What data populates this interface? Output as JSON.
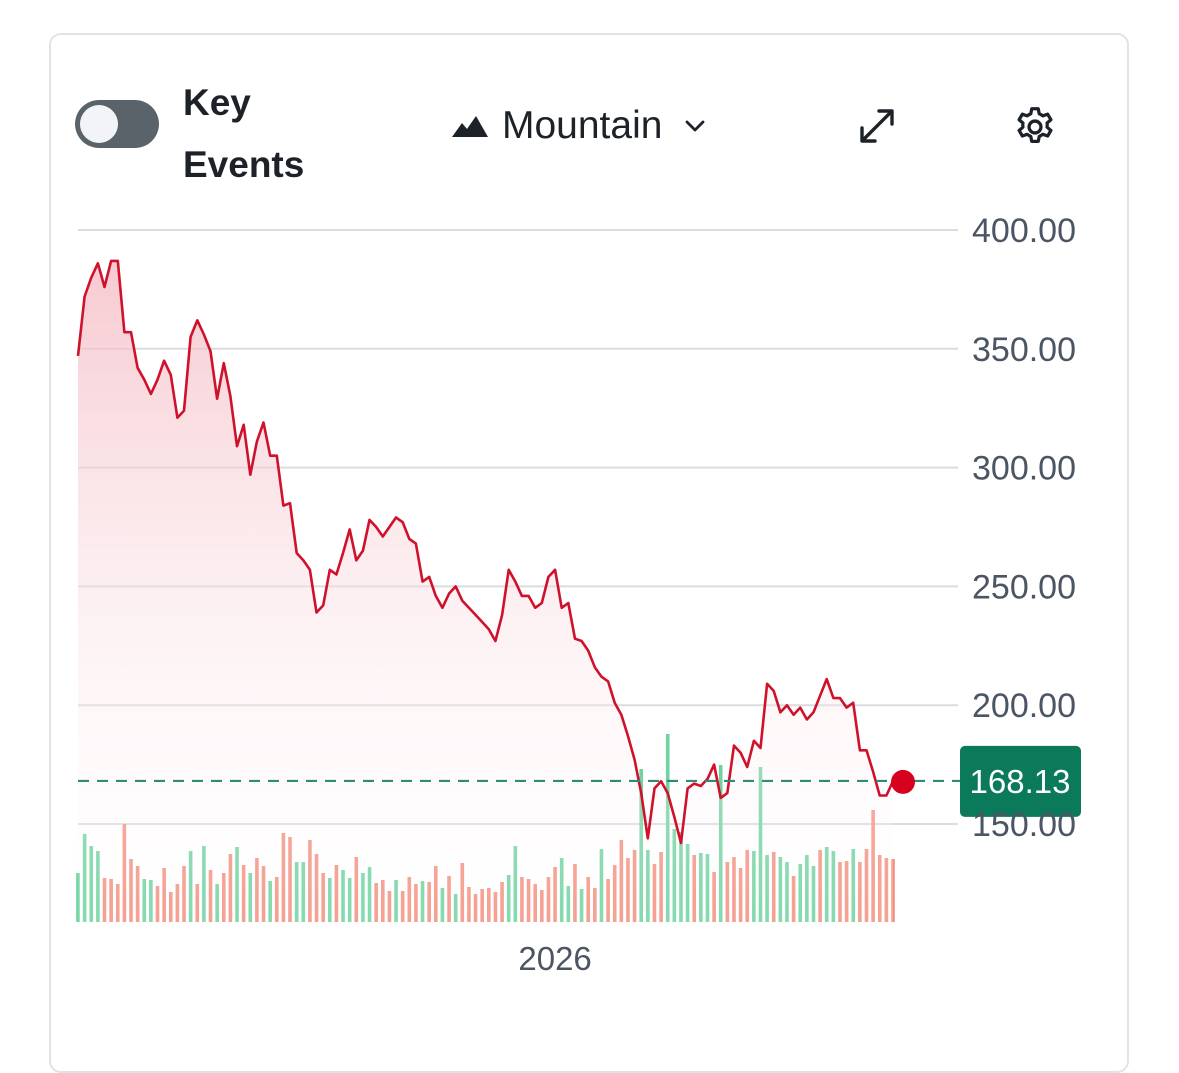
{
  "header": {
    "key_events_label": "Key Events",
    "chart_type_label": "Mountain"
  },
  "icons": {
    "mountain": "mountain-icon",
    "chevron": "chevron-down-icon",
    "expand": "expand-icon",
    "settings": "gear-icon"
  },
  "colors": {
    "line": "#d0112b",
    "fill": "#f5c6cd",
    "up_volume": "#6fd3a0",
    "down_volume": "#f3907f",
    "current_price_bg": "#0a7a5a",
    "reference_line": "#2e8b78",
    "marker": "#d7001e"
  },
  "chart_data": {
    "type": "area",
    "title": "",
    "xlabel": "",
    "ylabel": "",
    "ylim": [
      113,
      408
    ],
    "y_ticks": [
      "400.00",
      "350.00",
      "300.00",
      "250.00",
      "200.00",
      "150.00"
    ],
    "y_tick_values": [
      400,
      350,
      300,
      250,
      200,
      150
    ],
    "x_tick_labels": [
      "2026"
    ],
    "x_tick_index": 72,
    "current_price": 168.13,
    "current_price_label": "168.13",
    "values": [
      347,
      372,
      380,
      386,
      376,
      387,
      387,
      357,
      357,
      342,
      337,
      331,
      337,
      345,
      339,
      321,
      324,
      355,
      362,
      356,
      349,
      329,
      344,
      330,
      309,
      318,
      297,
      311,
      319,
      305,
      305,
      284,
      285,
      264,
      261,
      257,
      239,
      242,
      257,
      255,
      264,
      274,
      261,
      265,
      278,
      275,
      271,
      275,
      279,
      277,
      270,
      268,
      252,
      254,
      246,
      241,
      247,
      250,
      244,
      241,
      238,
      235,
      232,
      227,
      238,
      257,
      252,
      246,
      246,
      241,
      243,
      254,
      257,
      241,
      243,
      228,
      227,
      223,
      216,
      212,
      210,
      201,
      196,
      187,
      177,
      163,
      144,
      165,
      168,
      163,
      153,
      142,
      165,
      167,
      166,
      169,
      175,
      161,
      163,
      183,
      180,
      174,
      185,
      182,
      209,
      206,
      197,
      200,
      196,
      199,
      194,
      197,
      204,
      211,
      203,
      203,
      199,
      201,
      181,
      181,
      172,
      162,
      162,
      168
    ],
    "volume_heights": [
      49,
      88,
      76,
      71,
      44,
      43,
      38,
      98,
      63,
      56,
      43,
      42,
      36,
      54,
      30,
      38,
      56,
      71,
      38,
      76,
      52,
      38,
      49,
      68,
      75,
      57,
      49,
      64,
      56,
      41,
      45,
      89,
      85,
      60,
      60,
      82,
      68,
      49,
      44,
      57,
      52,
      44,
      65,
      49,
      55,
      39,
      42,
      31,
      42,
      31,
      45,
      38,
      41,
      40,
      56,
      34,
      46,
      28,
      59,
      35,
      28,
      33,
      34,
      30,
      40,
      47,
      76,
      45,
      43,
      38,
      32,
      45,
      55,
      64,
      36,
      58,
      33,
      45,
      34,
      73,
      43,
      57,
      82,
      64,
      72,
      153,
      72,
      58,
      70,
      188,
      93,
      90,
      78,
      67,
      69,
      68,
      50,
      157,
      60,
      65,
      54,
      72,
      71,
      155,
      67,
      70,
      65,
      60,
      46,
      58,
      67,
      56,
      72,
      75,
      71,
      60,
      61,
      73,
      60,
      73,
      112,
      67,
      64,
      63
    ],
    "volume_up": [
      1,
      1,
      1,
      1,
      0,
      0,
      0,
      0,
      0,
      0,
      1,
      1,
      0,
      0,
      0,
      0,
      0,
      1,
      0,
      1,
      0,
      1,
      0,
      0,
      1,
      0,
      1,
      0,
      0,
      1,
      0,
      0,
      0,
      1,
      1,
      0,
      0,
      0,
      1,
      0,
      1,
      1,
      0,
      1,
      1,
      0,
      0,
      0,
      1,
      0,
      0,
      0,
      1,
      0,
      0,
      1,
      0,
      1,
      0,
      0,
      0,
      0,
      0,
      0,
      0,
      1,
      1,
      0,
      0,
      0,
      0,
      0,
      0,
      1,
      1,
      0,
      1,
      0,
      0,
      1,
      0,
      0,
      0,
      0,
      0,
      1,
      1,
      0,
      0,
      1,
      1,
      1,
      1,
      0,
      1,
      1,
      0,
      1,
      0,
      0,
      0,
      0,
      1,
      1,
      1,
      0,
      1,
      1,
      0,
      1,
      1,
      1,
      0,
      1,
      1,
      0,
      0,
      1,
      0,
      0,
      0,
      0,
      0,
      0
    ],
    "volume_max_px": 188
  }
}
